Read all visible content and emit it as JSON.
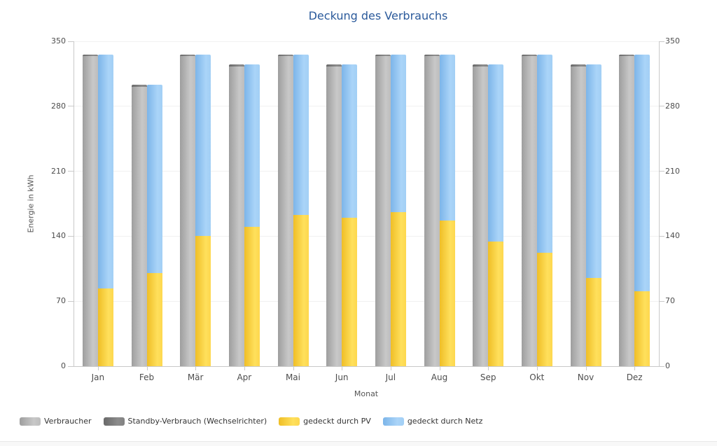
{
  "title": "Deckung des Verbrauchs",
  "title_color": "#2b5a9b",
  "axis_text_color": "#4d4d4d",
  "chart_data": {
    "type": "bar",
    "title": "Deckung des Verbrauchs",
    "xlabel": "Monat",
    "ylabel": "Energie in kWh",
    "ylim": [
      0,
      350
    ],
    "yticks": [
      0,
      70,
      140,
      210,
      280,
      350
    ],
    "grid": true,
    "legend_position": "bottom-left",
    "layout": "two stacked bars per category: left bar = Verbraucher+Standby, right bar = PV+Netz",
    "categories": [
      "Jan",
      "Feb",
      "Mär",
      "Apr",
      "Mai",
      "Jun",
      "Jul",
      "Aug",
      "Sep",
      "Okt",
      "Nov",
      "Dez"
    ],
    "series": [
      {
        "name": "Verbraucher",
        "stack": "verbrauch",
        "color": "#b9b9b9",
        "gradient": [
          "#9e9e9e",
          "#c8c8c8",
          "#bdbdbd"
        ],
        "values": [
          334,
          301,
          334,
          323,
          334,
          323,
          334,
          334,
          323,
          334,
          323,
          334
        ]
      },
      {
        "name": "Standby-Verbrauch (Wechselrichter)",
        "stack": "verbrauch",
        "color": "#787878",
        "gradient": [
          "#696969",
          "#8c8c8c",
          "#828282"
        ],
        "values": [
          2,
          2,
          2,
          2,
          2,
          2,
          2,
          2,
          2,
          2,
          2,
          2
        ]
      },
      {
        "name": "gedeckt durch PV",
        "stack": "deckung",
        "color": "#ffd73e",
        "gradient": [
          "#efbe26",
          "#ffe05c",
          "#fdd74e"
        ],
        "values": [
          84,
          100,
          140,
          150,
          163,
          160,
          166,
          157,
          134,
          122,
          95,
          81
        ]
      },
      {
        "name": "gedeckt durch Netz",
        "stack": "deckung",
        "color": "#9ccdf5",
        "gradient": [
          "#7cb5e9",
          "#aad4f8",
          "#a2cff5"
        ],
        "values": [
          252,
          203,
          196,
          175,
          173,
          165,
          170,
          179,
          191,
          214,
          230,
          255
        ]
      }
    ],
    "stack_totals": [
      336,
      303,
      336,
      325,
      336,
      325,
      336,
      336,
      325,
      336,
      325,
      336
    ]
  }
}
